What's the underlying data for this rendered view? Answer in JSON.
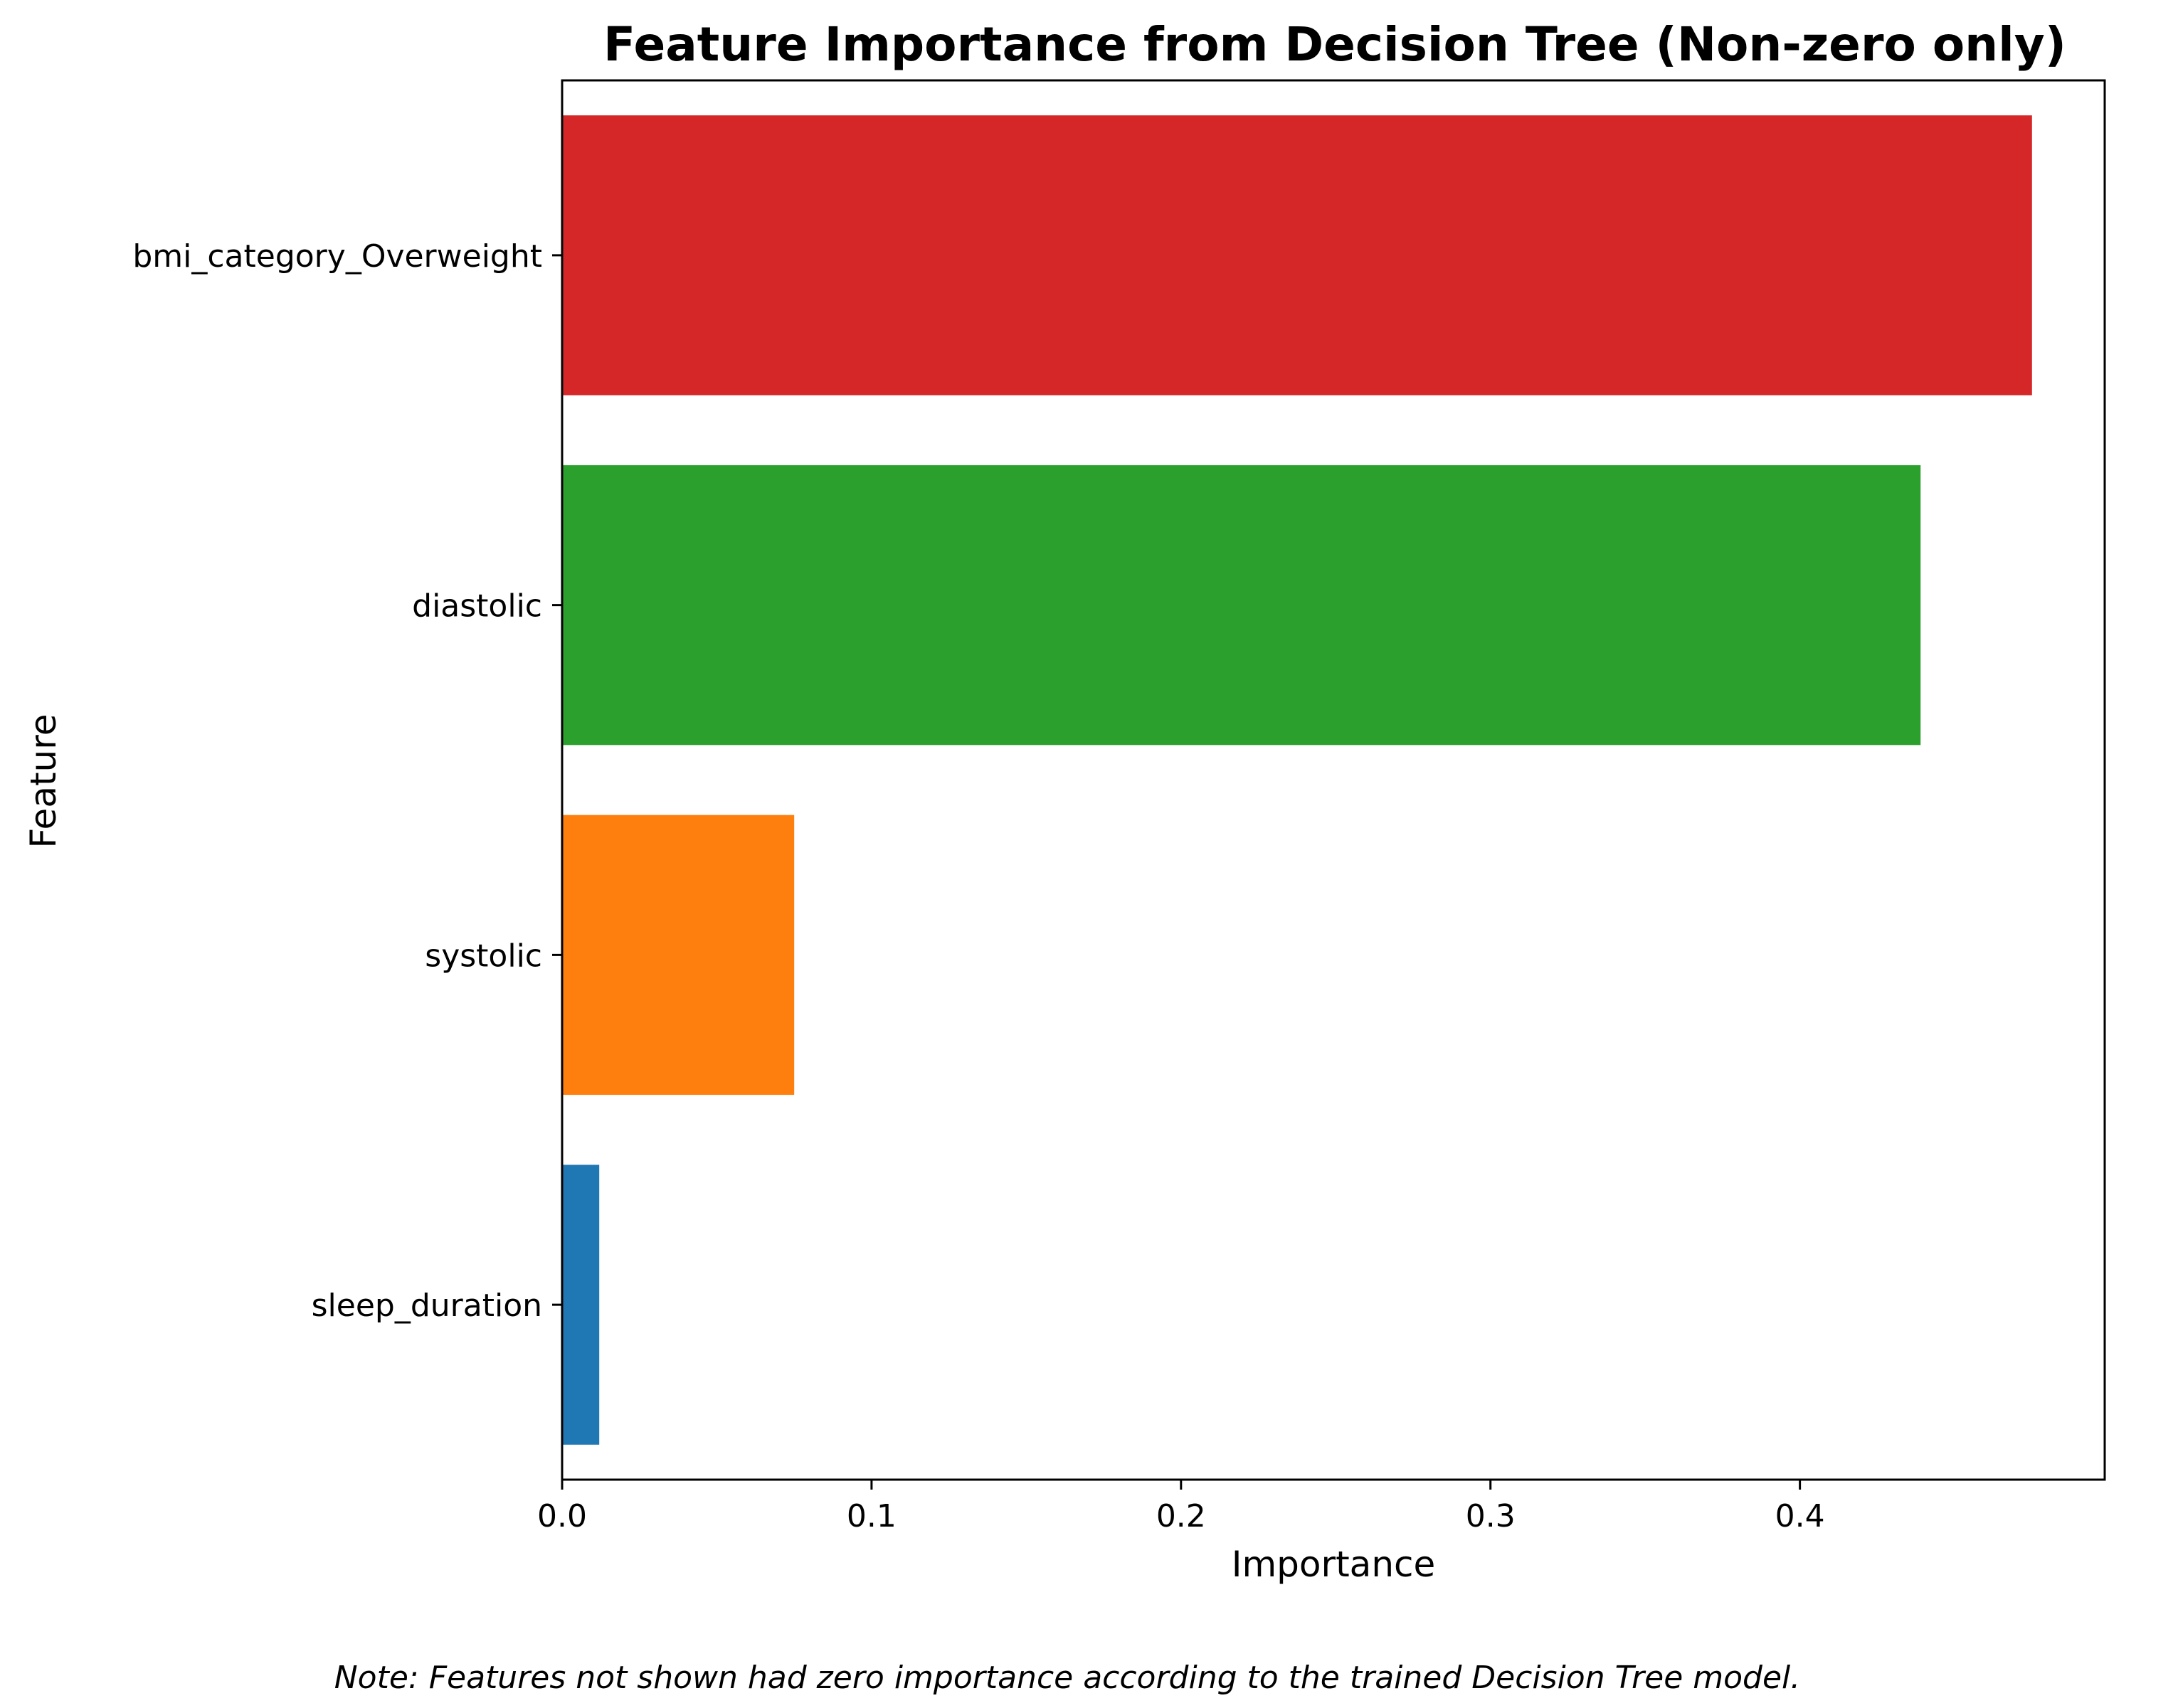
{
  "chart_data": {
    "type": "bar",
    "orientation": "horizontal",
    "title": "Feature Importance from Decision Tree (Non-zero only)",
    "xlabel": "Importance",
    "ylabel": "Feature",
    "categories": [
      "bmi_category_Overweight",
      "diastolic",
      "systolic",
      "sleep_duration"
    ],
    "values": [
      0.475,
      0.439,
      0.075,
      0.012
    ],
    "colors": [
      "#d62728",
      "#2ca02c",
      "#ff7f0e",
      "#1f77b4"
    ],
    "xlim": [
      0,
      0.4985
    ],
    "xticks": [
      0.0,
      0.1,
      0.2,
      0.3,
      0.4
    ],
    "xtick_labels": [
      "0.0",
      "0.1",
      "0.2",
      "0.3",
      "0.4"
    ],
    "grid": false,
    "note": "Note: Features not shown had zero importance according to the trained Decision Tree model."
  }
}
